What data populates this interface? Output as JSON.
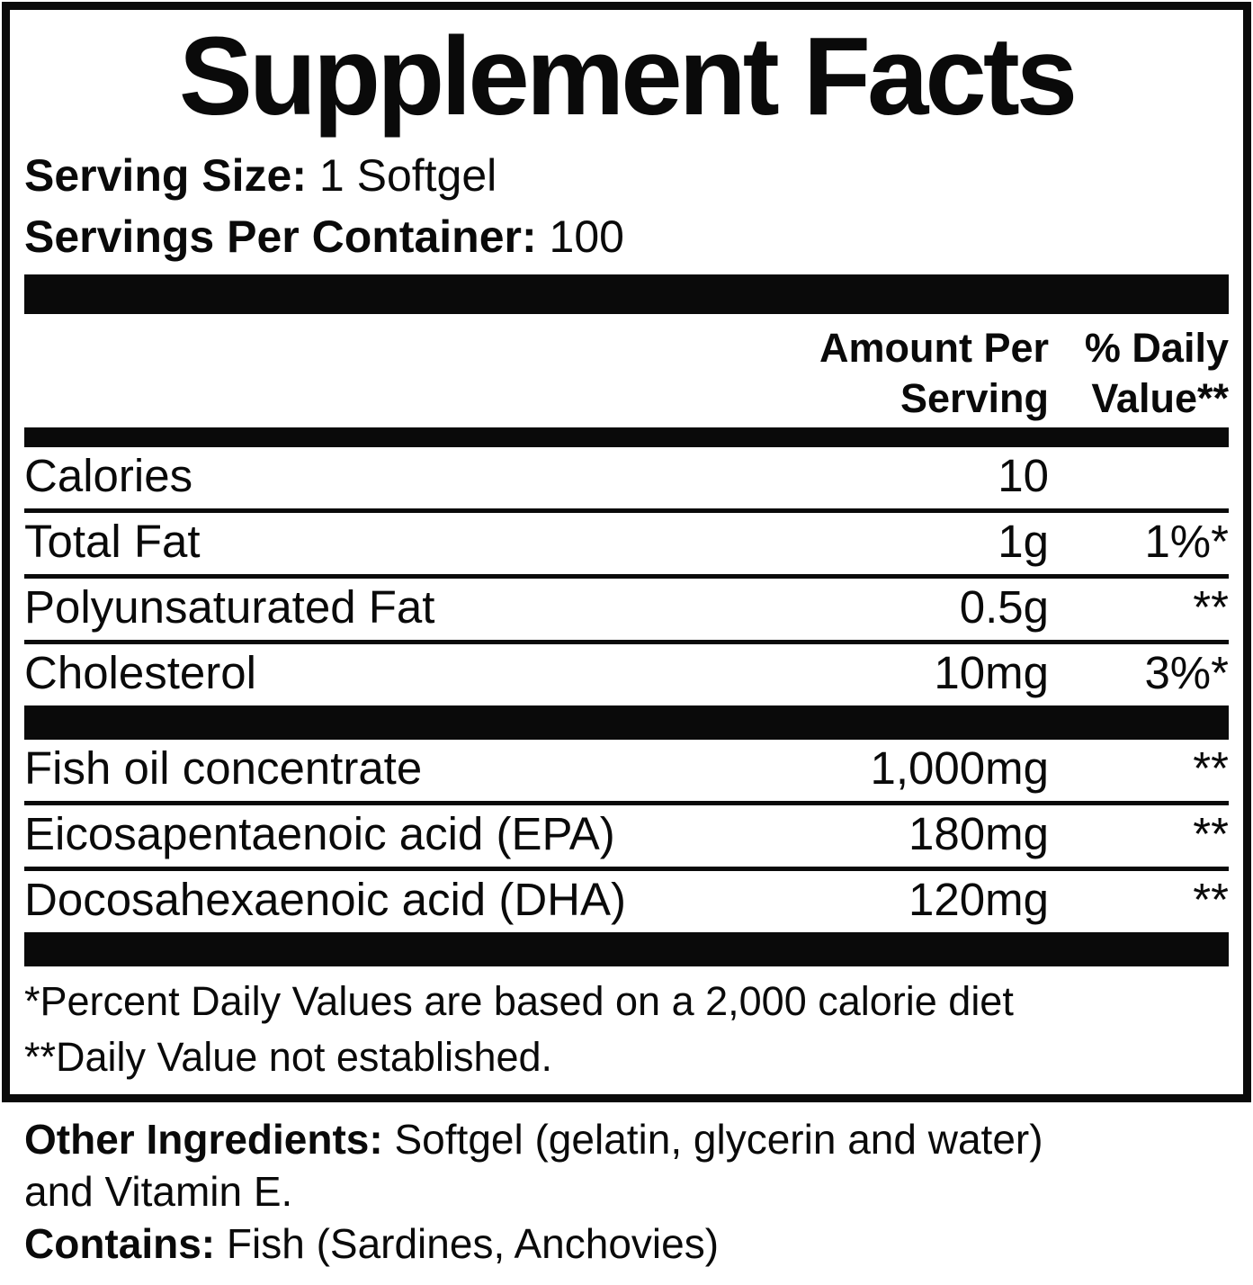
{
  "colors": {
    "text": "#0a0a0a",
    "background": "#ffffff"
  },
  "panel": {
    "title": "Supplement Facts",
    "serving_size_label": "Serving Size:",
    "serving_size_value": "1 Softgel",
    "servings_per_container_label": "Servings Per Container:",
    "servings_per_container_value": "100",
    "header": {
      "amount_line1": "Amount Per",
      "amount_line2": "Serving",
      "dv_line1": "% Daily",
      "dv_line2": "Value**"
    },
    "nutrients": [
      {
        "name": "Calories",
        "amount": "10",
        "dv": ""
      },
      {
        "name": "Total Fat",
        "amount": "1g",
        "dv": "1%*"
      },
      {
        "name": "Polyunsaturated Fat",
        "amount": "0.5g",
        "dv": "**"
      },
      {
        "name": "Cholesterol",
        "amount": "10mg",
        "dv": "3%*"
      }
    ],
    "ingredients": [
      {
        "name": "Fish oil concentrate",
        "amount": "1,000mg",
        "dv": "**"
      },
      {
        "name": "Eicosapentaenoic acid (EPA)",
        "amount": "180mg",
        "dv": "**"
      },
      {
        "name": "Docosahexaenoic acid (DHA)",
        "amount": "120mg",
        "dv": "**"
      }
    ],
    "footnotes": {
      "line1": "*Percent Daily Values are based on a 2,000 calorie diet",
      "line2": "**Daily Value not established."
    }
  },
  "other_info": {
    "other_ingredients_label": "Other Ingredients:",
    "other_ingredients_value": "Softgel (gelatin, glycerin and water)",
    "other_ingredients_line2": "and Vitamin E.",
    "contains_label": "Contains:",
    "contains_value": "Fish (Sardines, Anchovies)"
  }
}
